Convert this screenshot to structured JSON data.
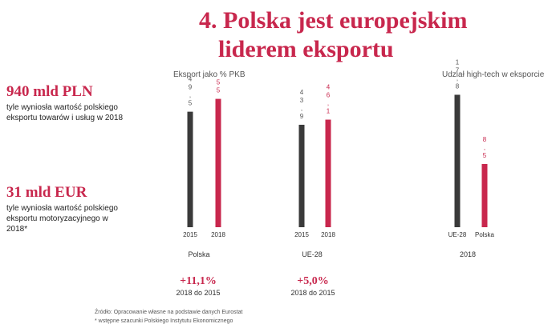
{
  "slide": {
    "title_line1": "4. Polska jest europejskim",
    "title_line2": "liderem eksportu"
  },
  "kpis": [
    {
      "value": "940 mld PLN",
      "description": "tyle wyniosła wartość polskiego eksportu towarów i usług w 2018"
    },
    {
      "value": "31 mld EUR",
      "description": "tyle wyniosła wartość polskiego eksportu motoryzacyjnego w 2018*"
    }
  ],
  "sections": {
    "export_pct_gdp": "Eksport jako % PKB",
    "hightech_share": "Udział high-tech w eksporcie"
  },
  "groups": {
    "polska": "Polska",
    "ue28": "UE-28",
    "year_2018": "2018"
  },
  "growth": [
    {
      "value": "+11,1%",
      "sub": "2018 do 2015"
    },
    {
      "value": "+5,0%",
      "sub": "2018 do 2015"
    }
  ],
  "footnotes": {
    "line1": "Źródło: Opracowanie własne na podstawie danych Eurostat",
    "line2": "* wstępne szacunki Polskiego Instytutu Ekonomicznego"
  },
  "colors": {
    "dark": "#3a3a3a",
    "accent": "#c8274d"
  },
  "chart_data": [
    {
      "type": "bar",
      "title": "Eksport jako % PKB",
      "group": "Polska",
      "categories": [
        "2015",
        "2018"
      ],
      "values": [
        49.5,
        55
      ],
      "value_labels": [
        "49,5",
        "55"
      ],
      "colors": [
        "#3a3a3a",
        "#c8274d"
      ],
      "ylim": [
        0,
        60
      ]
    },
    {
      "type": "bar",
      "title": "Eksport jako % PKB",
      "group": "UE-28",
      "categories": [
        "2015",
        "2018"
      ],
      "values": [
        43.9,
        46.1
      ],
      "value_labels": [
        "43,9",
        "46,1"
      ],
      "colors": [
        "#3a3a3a",
        "#c8274d"
      ],
      "ylim": [
        0,
        60
      ]
    },
    {
      "type": "bar",
      "title": "Udział high-tech w eksporcie",
      "group": "2018",
      "categories": [
        "UE-28",
        "Polska"
      ],
      "values": [
        17.8,
        8.5
      ],
      "value_labels": [
        "17,8",
        "8,5"
      ],
      "colors": [
        "#3a3a3a",
        "#c8274d"
      ],
      "ylim": [
        0,
        20
      ]
    }
  ]
}
